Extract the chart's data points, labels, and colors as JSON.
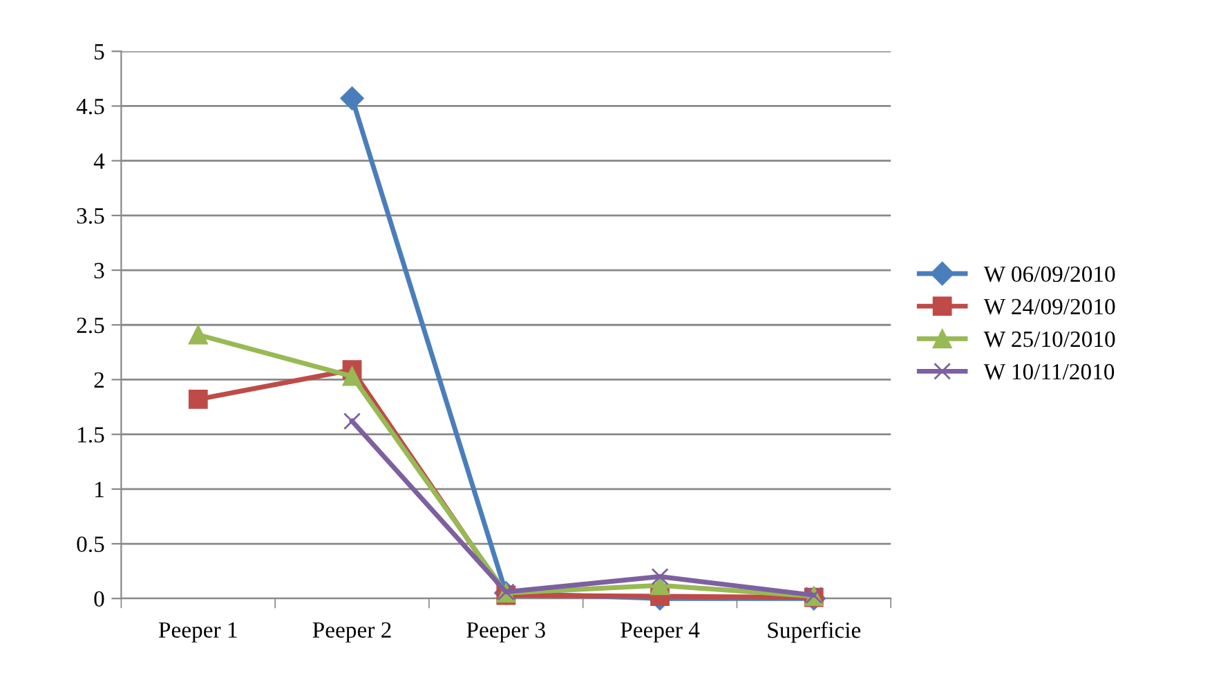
{
  "chart_data": {
    "type": "line",
    "categories": [
      "Peeper 1",
      "Peeper 2",
      "Peeper 3",
      "Peeper 4",
      "Superficie"
    ],
    "series": [
      {
        "name": "W 06/09/2010",
        "color": "#4a7ebb",
        "marker": "diamond",
        "values": [
          null,
          4.57,
          0.05,
          0.0,
          0.0
        ]
      },
      {
        "name": "W 24/09/2010",
        "color": "#be4b48",
        "marker": "square",
        "values": [
          1.82,
          2.09,
          0.03,
          0.02,
          0.01
        ]
      },
      {
        "name": "W 25/10/2010",
        "color": "#98b954",
        "marker": "triangle",
        "values": [
          2.41,
          2.03,
          0.05,
          0.12,
          0.02
        ]
      },
      {
        "name": "W 10/11/2010",
        "color": "#7d60a0",
        "marker": "cross",
        "values": [
          null,
          1.62,
          0.06,
          0.2,
          0.03
        ]
      }
    ],
    "ylim": [
      0,
      5
    ],
    "yticks": [
      0,
      0.5,
      1,
      1.5,
      2,
      2.5,
      3,
      3.5,
      4,
      4.5,
      5
    ],
    "grid": "y",
    "legend": "right"
  }
}
